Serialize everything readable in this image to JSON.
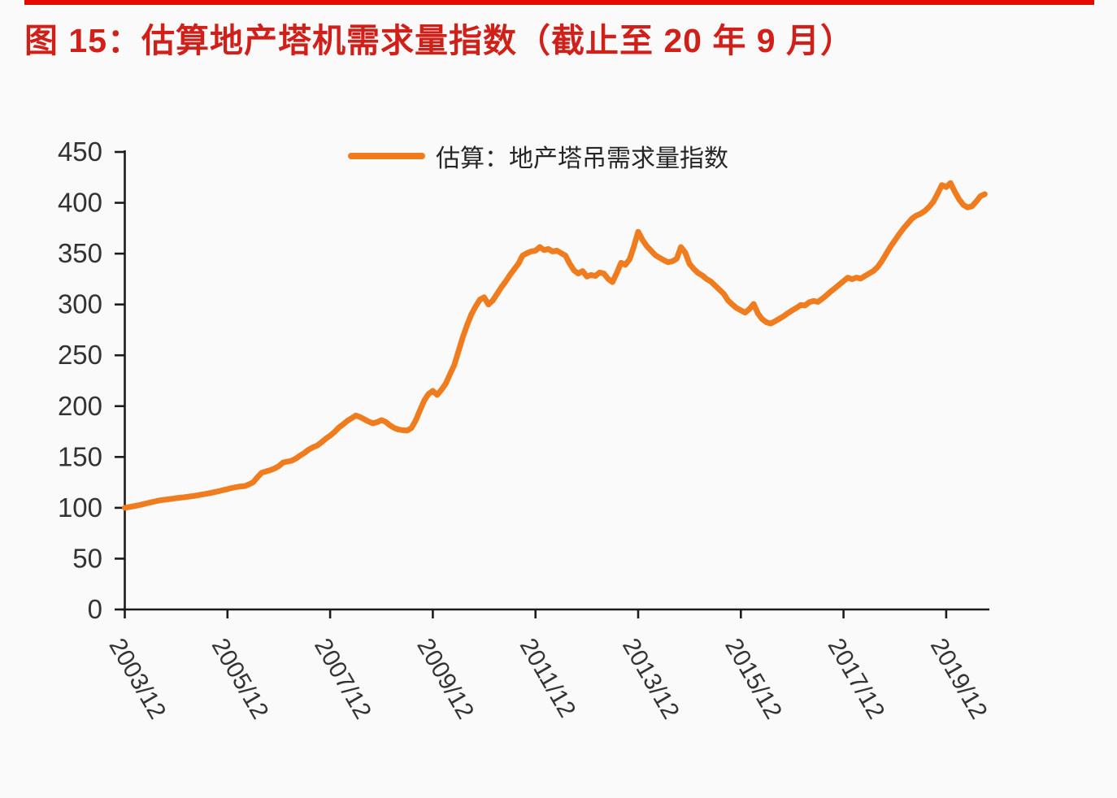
{
  "accent_bar": {
    "color": "#e30b00"
  },
  "title": {
    "text": "图 15：估算地产塔机需求量指数（截止至 20 年 9 月）",
    "color": "#d0201a"
  },
  "legend": {
    "label": "估算：地产塔吊需求量指数",
    "swatch_color": "#ef7d1f"
  },
  "chart_data": {
    "type": "line",
    "title": "估算地产塔机需求量指数（截止至 20 年 9 月）",
    "xlabel": "",
    "ylabel": "",
    "ylim": [
      0,
      450
    ],
    "y_ticks": [
      0,
      50,
      100,
      150,
      200,
      250,
      300,
      350,
      400,
      450
    ],
    "x_tick_labels": [
      "2003/12",
      "2005/12",
      "2007/12",
      "2009/12",
      "2011/12",
      "2013/12",
      "2015/12",
      "2017/12",
      "2019/12"
    ],
    "x_start": "2003/12",
    "x_end": "2020/09",
    "frequency": "monthly",
    "grid": false,
    "legend_position": "top-center",
    "axis_color": "#1c1c1c",
    "tick_label_color": "#333333",
    "series": [
      {
        "name": "估算：地产塔吊需求量指数",
        "color": "#ef7d1f",
        "values": [
          100,
          100.8,
          101.5,
          102.3,
          103.3,
          104.3,
          105.3,
          106.2,
          107.2,
          107.8,
          108.3,
          108.9,
          109.5,
          110,
          110.5,
          111,
          111.6,
          112.3,
          113,
          113.7,
          114.5,
          115.4,
          116.4,
          117.4,
          118.4,
          119.5,
          120.3,
          121,
          121.3,
          123,
          125.1,
          130,
          134.5,
          135.8,
          137,
          138.7,
          141,
          144.5,
          145.5,
          146.3,
          148.5,
          151.5,
          154,
          157.3,
          159.5,
          161.3,
          164.5,
          168,
          171,
          174.5,
          178.8,
          182,
          185.5,
          188.1,
          190.8,
          189.3,
          187,
          184.8,
          183,
          184.3,
          186.3,
          184.5,
          181,
          178.5,
          177,
          176.3,
          176,
          178.5,
          186,
          196,
          205.6,
          212,
          215,
          211,
          216,
          222,
          231.4,
          240.2,
          254,
          267.6,
          279.7,
          290.2,
          298,
          304.7,
          307.1,
          300,
          303.9,
          310.3,
          316.8,
          322.5,
          328.8,
          334.5,
          340.1,
          348.2,
          350.5,
          352.2,
          353,
          356.5,
          353.5,
          354.6,
          352.2,
          353,
          350.5,
          348.2,
          340.1,
          333.5,
          330.4,
          332.8,
          327.5,
          329,
          328,
          331.5,
          330.4,
          325,
          322,
          331,
          341,
          339,
          344.5,
          357,
          371.5,
          363.5,
          357.5,
          353,
          348.5,
          346,
          343.5,
          341.5,
          342.5,
          345,
          356.5,
          351,
          340,
          335,
          331,
          328.5,
          325,
          322.5,
          318.5,
          314.5,
          310.5,
          304,
          300,
          296.5,
          294.2,
          292,
          295.5,
          300.5,
          291,
          285.5,
          282.5,
          281.3,
          283.5,
          286,
          288.5,
          291.5,
          294.2,
          296.6,
          299.5,
          299,
          302.2,
          303.5,
          302.5,
          305.5,
          309,
          312.7,
          316,
          319.5,
          323,
          326.4,
          324.8,
          326.4,
          325.5,
          328,
          330.5,
          333,
          337,
          343,
          350,
          357,
          363,
          369,
          374.7,
          379.5,
          384.4,
          387.5,
          389.2,
          392,
          396,
          401,
          409,
          417.5,
          415.5,
          419.5,
          411,
          403.5,
          398,
          395.5,
          396.5,
          401,
          406.5,
          408.5
        ]
      }
    ]
  }
}
